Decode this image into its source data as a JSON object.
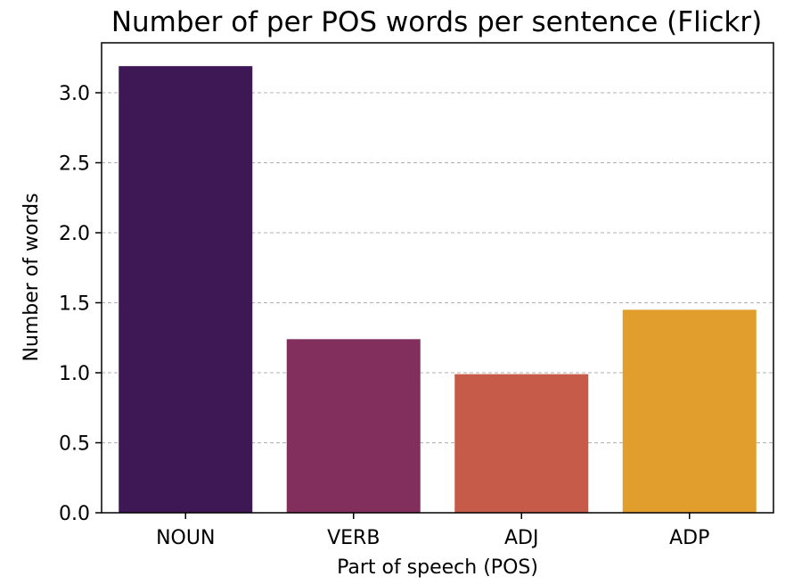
{
  "chart_data": {
    "type": "bar",
    "title": "Number of per POS words per sentence (Flickr)",
    "xlabel": "Part of speech (POS)",
    "ylabel": "Number of words",
    "categories": [
      "NOUN",
      "VERB",
      "ADJ",
      "ADP"
    ],
    "values": [
      3.19,
      1.24,
      0.99,
      1.45
    ],
    "colors": [
      "#3e1855",
      "#832f5d",
      "#c65b4a",
      "#e29e2c"
    ],
    "ylim": [
      0,
      3.2
    ],
    "yticks": [
      "0.0",
      "0.5",
      "1.0",
      "1.5",
      "2.0",
      "2.5",
      "3.0"
    ],
    "grid": "horizontal dashed",
    "legend": "none"
  }
}
